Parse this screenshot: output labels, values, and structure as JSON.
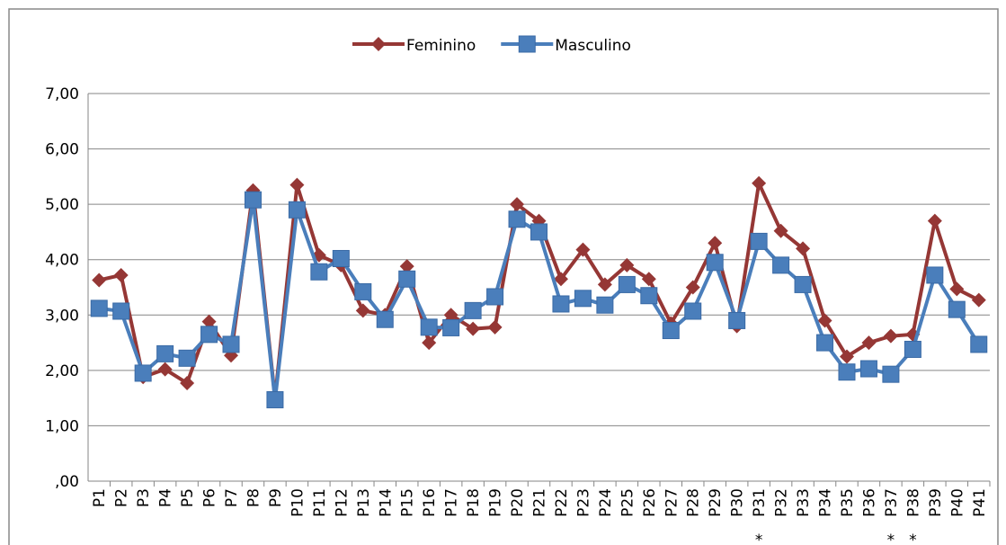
{
  "chart_data": {
    "type": "line",
    "categories": [
      "P1",
      "P2",
      "P3",
      "P4",
      "P5",
      "P6",
      "P7",
      "P8",
      "P9",
      "P10",
      "P11",
      "P12",
      "P13",
      "P14",
      "P15",
      "P16",
      "P17",
      "P18",
      "P19",
      "P20",
      "P21",
      "P22",
      "P23",
      "P24",
      "P25",
      "P26",
      "P27",
      "P28",
      "P29",
      "P30",
      "P31",
      "P32",
      "P33",
      "P34",
      "P35",
      "P36",
      "P37",
      "P38",
      "P39",
      "P40",
      "P41"
    ],
    "category_notes": [
      null,
      null,
      null,
      null,
      null,
      null,
      null,
      null,
      null,
      null,
      null,
      null,
      null,
      null,
      null,
      null,
      null,
      null,
      null,
      null,
      null,
      null,
      null,
      null,
      null,
      null,
      null,
      null,
      null,
      null,
      "*",
      null,
      null,
      null,
      null,
      null,
      "*",
      "*",
      null,
      null,
      null
    ],
    "series": [
      {
        "name": "Feminino",
        "color": "#953735",
        "marker": "diamond",
        "values": [
          3.63,
          3.72,
          1.88,
          2.02,
          1.77,
          2.88,
          2.27,
          5.25,
          1.5,
          5.35,
          4.08,
          3.9,
          3.08,
          3.0,
          3.88,
          2.5,
          3.0,
          2.75,
          2.78,
          5.0,
          4.7,
          3.65,
          4.18,
          3.55,
          3.9,
          3.65,
          2.85,
          3.5,
          4.3,
          2.8,
          5.38,
          4.52,
          4.2,
          2.9,
          2.25,
          2.5,
          2.62,
          2.65,
          4.7,
          3.47,
          3.27
        ]
      },
      {
        "name": "Masculino",
        "color": "#4a7ebb",
        "marker": "square",
        "values": [
          3.12,
          3.07,
          1.95,
          2.3,
          2.22,
          2.65,
          2.47,
          5.08,
          1.47,
          4.9,
          3.78,
          4.02,
          3.42,
          2.92,
          3.65,
          2.78,
          2.77,
          3.08,
          3.33,
          4.73,
          4.5,
          3.2,
          3.3,
          3.18,
          3.55,
          3.35,
          2.72,
          3.07,
          3.95,
          2.9,
          4.33,
          3.9,
          3.55,
          2.5,
          1.97,
          2.03,
          1.93,
          2.38,
          3.72,
          3.1,
          2.47
        ]
      }
    ],
    "ylim": [
      0,
      7
    ],
    "yticks": [
      {
        "value": 0,
        "label": ",00"
      },
      {
        "value": 1,
        "label": "1,00"
      },
      {
        "value": 2,
        "label": "2,00"
      },
      {
        "value": 3,
        "label": "3,00"
      },
      {
        "value": 4,
        "label": "4,00"
      },
      {
        "value": 5,
        "label": "5,00"
      },
      {
        "value": 6,
        "label": "6,00"
      },
      {
        "value": 7,
        "label": "7,00"
      }
    ],
    "grid": true,
    "legend": "top"
  }
}
